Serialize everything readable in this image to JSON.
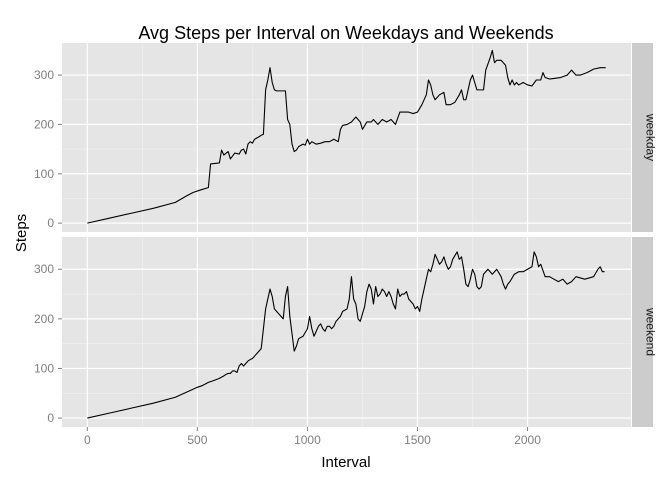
{
  "chart_data": {
    "type": "line",
    "title": "Avg Steps per Interval on Weekdays and Weekends",
    "xlabel": "Interval",
    "ylabel": "Steps",
    "xlim": [
      -115,
      2470
    ],
    "xticks": [
      0,
      500,
      1000,
      1500,
      2000
    ],
    "xtick_labels": [
      "0",
      "500",
      "1000",
      "1500",
      "2000"
    ],
    "ylim": [
      -18,
      365
    ],
    "yticks": [
      0,
      100,
      200,
      300
    ],
    "ytick_labels": [
      "0",
      "100",
      "200",
      "300"
    ],
    "grid": true,
    "legend": "none",
    "colors": {
      "panel_bg": "#e5e5e5",
      "grid_major": "#ffffff",
      "grid_minor": "#f2f2f2",
      "strip_bg": "#cccccc",
      "line": "#000000"
    },
    "panels": [
      {
        "label": "weekday",
        "points": [
          [
            0,
            0
          ],
          [
            100,
            10
          ],
          [
            200,
            20
          ],
          [
            300,
            30
          ],
          [
            400,
            42
          ],
          [
            450,
            55
          ],
          [
            480,
            62
          ],
          [
            520,
            68
          ],
          [
            550,
            72
          ],
          [
            560,
            120
          ],
          [
            600,
            122
          ],
          [
            610,
            148
          ],
          [
            620,
            138
          ],
          [
            640,
            145
          ],
          [
            650,
            130
          ],
          [
            670,
            142
          ],
          [
            690,
            140
          ],
          [
            700,
            148
          ],
          [
            710,
            150
          ],
          [
            720,
            140
          ],
          [
            730,
            160
          ],
          [
            740,
            165
          ],
          [
            750,
            162
          ],
          [
            760,
            170
          ],
          [
            780,
            175
          ],
          [
            790,
            178
          ],
          [
            800,
            180
          ],
          [
            810,
            270
          ],
          [
            820,
            290
          ],
          [
            830,
            315
          ],
          [
            840,
            285
          ],
          [
            850,
            270
          ],
          [
            860,
            268
          ],
          [
            900,
            268
          ],
          [
            910,
            210
          ],
          [
            920,
            200
          ],
          [
            930,
            160
          ],
          [
            940,
            145
          ],
          [
            950,
            148
          ],
          [
            960,
            155
          ],
          [
            980,
            160
          ],
          [
            990,
            158
          ],
          [
            1000,
            170
          ],
          [
            1010,
            160
          ],
          [
            1020,
            165
          ],
          [
            1040,
            160
          ],
          [
            1060,
            162
          ],
          [
            1080,
            165
          ],
          [
            1100,
            165
          ],
          [
            1120,
            170
          ],
          [
            1140,
            165
          ],
          [
            1150,
            190
          ],
          [
            1160,
            198
          ],
          [
            1180,
            200
          ],
          [
            1200,
            205
          ],
          [
            1220,
            215
          ],
          [
            1240,
            205
          ],
          [
            1250,
            190
          ],
          [
            1270,
            205
          ],
          [
            1290,
            205
          ],
          [
            1300,
            210
          ],
          [
            1320,
            200
          ],
          [
            1340,
            210
          ],
          [
            1360,
            205
          ],
          [
            1380,
            210
          ],
          [
            1400,
            200
          ],
          [
            1420,
            225
          ],
          [
            1440,
            225
          ],
          [
            1460,
            225
          ],
          [
            1480,
            222
          ],
          [
            1500,
            225
          ],
          [
            1520,
            240
          ],
          [
            1540,
            260
          ],
          [
            1550,
            290
          ],
          [
            1560,
            280
          ],
          [
            1570,
            260
          ],
          [
            1580,
            250
          ],
          [
            1600,
            260
          ],
          [
            1620,
            265
          ],
          [
            1630,
            240
          ],
          [
            1650,
            240
          ],
          [
            1670,
            245
          ],
          [
            1690,
            260
          ],
          [
            1700,
            270
          ],
          [
            1710,
            250
          ],
          [
            1720,
            250
          ],
          [
            1730,
            270
          ],
          [
            1740,
            290
          ],
          [
            1750,
            300
          ],
          [
            1760,
            285
          ],
          [
            1770,
            270
          ],
          [
            1780,
            270
          ],
          [
            1800,
            270
          ],
          [
            1810,
            310
          ],
          [
            1830,
            335
          ],
          [
            1840,
            350
          ],
          [
            1850,
            325
          ],
          [
            1860,
            330
          ],
          [
            1880,
            330
          ],
          [
            1900,
            320
          ],
          [
            1910,
            295
          ],
          [
            1920,
            280
          ],
          [
            1930,
            290
          ],
          [
            1940,
            280
          ],
          [
            1950,
            285
          ],
          [
            1960,
            280
          ],
          [
            1980,
            285
          ],
          [
            2000,
            280
          ],
          [
            2020,
            278
          ],
          [
            2040,
            290
          ],
          [
            2060,
            290
          ],
          [
            2070,
            305
          ],
          [
            2080,
            295
          ],
          [
            2100,
            292
          ],
          [
            2150,
            295
          ],
          [
            2180,
            300
          ],
          [
            2200,
            310
          ],
          [
            2220,
            300
          ],
          [
            2240,
            300
          ],
          [
            2270,
            305
          ],
          [
            2300,
            312
          ],
          [
            2330,
            315
          ],
          [
            2355,
            315
          ]
        ]
      },
      {
        "label": "weekend",
        "points": [
          [
            0,
            0
          ],
          [
            100,
            10
          ],
          [
            200,
            20
          ],
          [
            300,
            30
          ],
          [
            400,
            42
          ],
          [
            450,
            52
          ],
          [
            500,
            62
          ],
          [
            520,
            65
          ],
          [
            550,
            72
          ],
          [
            570,
            75
          ],
          [
            600,
            80
          ],
          [
            620,
            85
          ],
          [
            630,
            88
          ],
          [
            640,
            90
          ],
          [
            650,
            90
          ],
          [
            660,
            95
          ],
          [
            670,
            95
          ],
          [
            680,
            92
          ],
          [
            690,
            105
          ],
          [
            700,
            110
          ],
          [
            710,
            105
          ],
          [
            720,
            110
          ],
          [
            730,
            115
          ],
          [
            740,
            118
          ],
          [
            750,
            120
          ],
          [
            760,
            125
          ],
          [
            770,
            130
          ],
          [
            780,
            135
          ],
          [
            790,
            140
          ],
          [
            800,
            180
          ],
          [
            810,
            220
          ],
          [
            820,
            240
          ],
          [
            830,
            260
          ],
          [
            840,
            245
          ],
          [
            850,
            220
          ],
          [
            860,
            215
          ],
          [
            870,
            210
          ],
          [
            880,
            205
          ],
          [
            890,
            200
          ],
          [
            900,
            245
          ],
          [
            910,
            265
          ],
          [
            920,
            205
          ],
          [
            930,
            170
          ],
          [
            940,
            135
          ],
          [
            950,
            145
          ],
          [
            960,
            160
          ],
          [
            980,
            165
          ],
          [
            1000,
            180
          ],
          [
            1010,
            205
          ],
          [
            1020,
            180
          ],
          [
            1030,
            165
          ],
          [
            1040,
            175
          ],
          [
            1050,
            185
          ],
          [
            1060,
            190
          ],
          [
            1070,
            180
          ],
          [
            1080,
            175
          ],
          [
            1090,
            185
          ],
          [
            1100,
            185
          ],
          [
            1110,
            180
          ],
          [
            1120,
            185
          ],
          [
            1130,
            195
          ],
          [
            1150,
            205
          ],
          [
            1160,
            215
          ],
          [
            1180,
            220
          ],
          [
            1190,
            240
          ],
          [
            1200,
            285
          ],
          [
            1210,
            240
          ],
          [
            1220,
            230
          ],
          [
            1230,
            200
          ],
          [
            1240,
            195
          ],
          [
            1250,
            210
          ],
          [
            1260,
            225
          ],
          [
            1270,
            255
          ],
          [
            1280,
            270
          ],
          [
            1290,
            260
          ],
          [
            1300,
            230
          ],
          [
            1310,
            265
          ],
          [
            1320,
            245
          ],
          [
            1330,
            250
          ],
          [
            1340,
            260
          ],
          [
            1350,
            255
          ],
          [
            1360,
            245
          ],
          [
            1370,
            255
          ],
          [
            1380,
            245
          ],
          [
            1390,
            230
          ],
          [
            1400,
            220
          ],
          [
            1410,
            260
          ],
          [
            1420,
            245
          ],
          [
            1430,
            250
          ],
          [
            1440,
            250
          ],
          [
            1450,
            255
          ],
          [
            1460,
            240
          ],
          [
            1470,
            235
          ],
          [
            1480,
            230
          ],
          [
            1490,
            220
          ],
          [
            1500,
            225
          ],
          [
            1510,
            215
          ],
          [
            1520,
            240
          ],
          [
            1530,
            260
          ],
          [
            1540,
            280
          ],
          [
            1550,
            300
          ],
          [
            1560,
            295
          ],
          [
            1570,
            310
          ],
          [
            1580,
            330
          ],
          [
            1590,
            320
          ],
          [
            1600,
            310
          ],
          [
            1610,
            315
          ],
          [
            1620,
            325
          ],
          [
            1630,
            310
          ],
          [
            1640,
            300
          ],
          [
            1650,
            305
          ],
          [
            1660,
            320
          ],
          [
            1680,
            335
          ],
          [
            1690,
            320
          ],
          [
            1700,
            325
          ],
          [
            1710,
            300
          ],
          [
            1720,
            270
          ],
          [
            1730,
            265
          ],
          [
            1740,
            280
          ],
          [
            1750,
            300
          ],
          [
            1760,
            290
          ],
          [
            1770,
            265
          ],
          [
            1780,
            260
          ],
          [
            1790,
            265
          ],
          [
            1800,
            290
          ],
          [
            1820,
            300
          ],
          [
            1840,
            290
          ],
          [
            1860,
            300
          ],
          [
            1880,
            285
          ],
          [
            1890,
            270
          ],
          [
            1900,
            260
          ],
          [
            1910,
            270
          ],
          [
            1920,
            275
          ],
          [
            1940,
            290
          ],
          [
            1960,
            295
          ],
          [
            1980,
            295
          ],
          [
            2000,
            300
          ],
          [
            2020,
            305
          ],
          [
            2030,
            335
          ],
          [
            2040,
            325
          ],
          [
            2050,
            305
          ],
          [
            2060,
            310
          ],
          [
            2080,
            285
          ],
          [
            2100,
            285
          ],
          [
            2120,
            280
          ],
          [
            2140,
            275
          ],
          [
            2160,
            280
          ],
          [
            2180,
            270
          ],
          [
            2200,
            275
          ],
          [
            2220,
            285
          ],
          [
            2260,
            280
          ],
          [
            2300,
            285
          ],
          [
            2320,
            300
          ],
          [
            2330,
            305
          ],
          [
            2340,
            295
          ],
          [
            2350,
            295
          ]
        ]
      }
    ]
  }
}
